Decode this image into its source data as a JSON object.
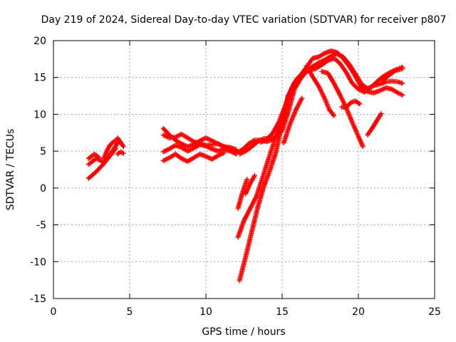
{
  "chart_data": {
    "type": "scatter",
    "title": "Day 219 of 2024, Sidereal Day-to-day VTEC variation (SDTVAR) for receiver p807",
    "xlabel": "GPS time / hours",
    "ylabel": "SDTVAR / TECUs",
    "xlim": [
      0,
      25
    ],
    "ylim": [
      -15,
      20
    ],
    "xticks": [
      0,
      5,
      10,
      15,
      20,
      25
    ],
    "yticks": [
      -15,
      -10,
      -5,
      0,
      5,
      10,
      15,
      20
    ],
    "grid": true,
    "marker": "plus",
    "series_color": "#ff0000",
    "series": [
      {
        "x": [
          2.3,
          2.8,
          3.3,
          3.8,
          4.1
        ],
        "y": [
          1.3,
          2.2,
          3.3,
          4.6,
          5.4
        ]
      },
      {
        "x": [
          2.3,
          2.8,
          3.3,
          3.8,
          4.2
        ],
        "y": [
          3.2,
          4.0,
          3.5,
          4.8,
          6.1
        ]
      },
      {
        "x": [
          2.3,
          2.7,
          3.0
        ],
        "y": [
          4.0,
          4.6,
          4.1
        ]
      },
      {
        "x": [
          3.3,
          3.5,
          3.7,
          3.9,
          4.1
        ],
        "y": [
          4.0,
          5.0,
          5.8,
          6.2,
          6.5
        ]
      },
      {
        "x": [
          4.2,
          4.4,
          4.6
        ],
        "y": [
          6.8,
          6.2,
          5.6
        ]
      },
      {
        "x": [
          4.2,
          4.4,
          4.6
        ],
        "y": [
          4.6,
          4.9,
          4.7
        ]
      },
      {
        "x": [
          7.2,
          7.6,
          8.0,
          8.4,
          8.8,
          9.2,
          9.6,
          10.0,
          10.4,
          10.8,
          11.2,
          11.6,
          12.0
        ],
        "y": [
          8.1,
          7.2,
          6.5,
          6.0,
          5.6,
          5.9,
          6.4,
          6.8,
          6.4,
          6.0,
          5.6,
          5.5,
          5.2
        ]
      },
      {
        "x": [
          7.2,
          7.6,
          8.0,
          8.4,
          8.8,
          9.2,
          9.6,
          10.0,
          10.4,
          10.8,
          11.2,
          11.6,
          12.0
        ],
        "y": [
          7.2,
          6.8,
          6.9,
          7.3,
          6.8,
          6.3,
          6.0,
          5.8,
          5.9,
          6.0,
          5.6,
          5.3,
          4.9
        ]
      },
      {
        "x": [
          7.2,
          7.6,
          8.0,
          8.4,
          8.8,
          9.2,
          9.6,
          10.0,
          10.4,
          10.8,
          11.2,
          11.6,
          12.0
        ],
        "y": [
          4.9,
          5.3,
          5.8,
          5.5,
          5.0,
          5.4,
          5.9,
          5.7,
          5.3,
          5.0,
          5.3,
          5.0,
          4.6
        ]
      },
      {
        "x": [
          7.2,
          7.6,
          8.0,
          8.4,
          8.8,
          9.2,
          9.6,
          10.0,
          10.4,
          10.8,
          11.2
        ],
        "y": [
          3.7,
          4.1,
          4.6,
          4.0,
          3.6,
          4.1,
          4.6,
          4.3,
          3.9,
          4.4,
          4.8
        ]
      },
      {
        "x": [
          12.0,
          12.4,
          12.8,
          13.2,
          13.6,
          14.0,
          14.4,
          14.8,
          15.0,
          15.4,
          15.8,
          16.2,
          16.6,
          17.0,
          17.4,
          17.8,
          18.2,
          18.6,
          19.0,
          19.4,
          19.8,
          20.2,
          20.6,
          21.0,
          21.4,
          21.8,
          22.2,
          22.6,
          22.9
        ],
        "y": [
          4.8,
          5.2,
          6.0,
          6.5,
          6.5,
          6.3,
          6.6,
          7.4,
          8.7,
          12.5,
          14.3,
          15.3,
          16.4,
          17.6,
          17.8,
          18.3,
          18.6,
          18.4,
          17.6,
          16.5,
          15.2,
          13.6,
          13.1,
          12.9,
          13.2,
          13.6,
          13.4,
          12.9,
          12.6
        ]
      },
      {
        "x": [
          12.2,
          12.6,
          13.0,
          13.4,
          13.8,
          14.2,
          14.6,
          15.0,
          15.4,
          15.8,
          16.2,
          16.6,
          17.0,
          17.4,
          17.8,
          18.2,
          18.6,
          19.0,
          19.4,
          19.8,
          20.2,
          20.6,
          21.0,
          21.4,
          21.8,
          22.2,
          22.6,
          22.9
        ],
        "y": [
          4.6,
          5.0,
          5.6,
          6.3,
          6.7,
          6.7,
          6.9,
          7.8,
          10.3,
          13.4,
          14.8,
          15.8,
          16.5,
          17.0,
          17.4,
          17.9,
          18.2,
          17.8,
          16.8,
          15.5,
          14.1,
          13.5,
          13.9,
          14.1,
          14.4,
          14.5,
          14.4,
          14.2
        ]
      },
      {
        "x": [
          13.6,
          14.0,
          14.4,
          14.8,
          15.2,
          15.6,
          16.0,
          16.4,
          16.8,
          17.2,
          17.6,
          18.0,
          18.4,
          18.8,
          19.2,
          19.6,
          20.0,
          20.4,
          20.8,
          21.2,
          21.6,
          22.0,
          22.4,
          22.9
        ],
        "y": [
          6.2,
          6.6,
          7.5,
          9.0,
          11.1,
          13.4,
          14.9,
          15.6,
          16.0,
          16.2,
          16.7,
          17.3,
          17.6,
          16.9,
          15.7,
          14.2,
          13.4,
          13.0,
          13.6,
          14.4,
          15.1,
          15.6,
          16.0,
          16.4
        ]
      },
      {
        "x": [
          12.1,
          12.5,
          12.9,
          13.3,
          13.7,
          14.1,
          14.5,
          14.9,
          15.3,
          15.7,
          16.1
        ],
        "y": [
          -6.7,
          -4.4,
          -2.8,
          -1.2,
          1.3,
          3.9,
          6.4,
          9.0,
          11.7,
          13.6,
          15.0
        ]
      },
      {
        "x": [
          12.2,
          12.6,
          13.0,
          13.4,
          13.8,
          14.2,
          14.6,
          15.0,
          15.4
        ],
        "y": [
          -12.6,
          -9.4,
          -6.0,
          -2.6,
          0.2,
          2.4,
          4.9,
          8.7,
          12.6
        ]
      },
      {
        "x": [
          12.1,
          12.4,
          12.7
        ],
        "y": [
          -2.8,
          -0.6,
          1.2
        ]
      },
      {
        "x": [
          12.6,
          12.9,
          13.2
        ],
        "y": [
          -0.8,
          0.6,
          1.7
        ]
      },
      {
        "x": [
          15.1,
          15.5,
          15.9,
          16.3
        ],
        "y": [
          6.1,
          8.6,
          10.6,
          12.2
        ]
      },
      {
        "x": [
          16.6,
          17.0,
          17.4,
          17.8,
          18.1,
          18.4
        ],
        "y": [
          16.6,
          15.1,
          13.8,
          12.1,
          10.6,
          9.8
        ]
      },
      {
        "x": [
          17.6,
          18.0,
          18.4,
          18.8,
          19.2,
          19.6,
          20.0,
          20.3
        ],
        "y": [
          15.8,
          15.6,
          14.2,
          12.6,
          10.9,
          8.9,
          7.0,
          5.6
        ]
      },
      {
        "x": [
          18.9,
          19.2,
          19.5,
          19.8,
          20.1
        ],
        "y": [
          11.0,
          10.9,
          11.6,
          11.8,
          11.4
        ]
      },
      {
        "x": [
          20.6,
          20.9,
          21.2,
          21.5
        ],
        "y": [
          7.2,
          8.1,
          9.1,
          10.1
        ]
      },
      {
        "x": [
          21.6,
          22.0,
          22.4,
          22.9
        ],
        "y": [
          14.6,
          15.3,
          15.9,
          16.2
        ]
      }
    ]
  }
}
